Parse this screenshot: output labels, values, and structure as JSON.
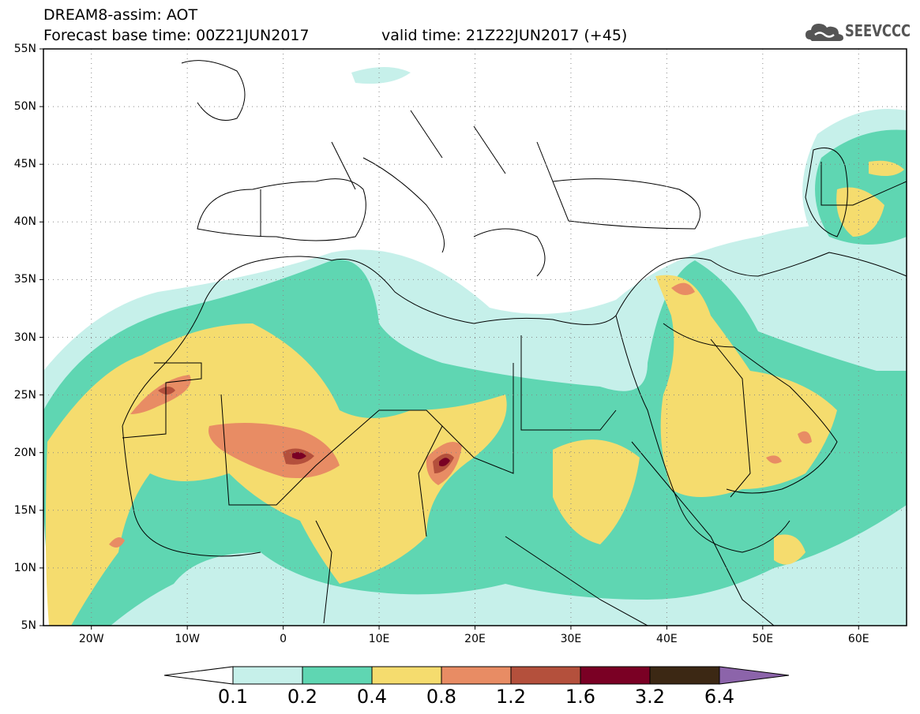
{
  "header": {
    "title_line1": "DREAM8-assim: AOT",
    "title_line2": "Forecast base time: 00Z21JUN2017",
    "valid_time": "valid time: 21Z22JUN2017 (+45)",
    "logo_text": "SEEVCCC",
    "logo_icon": "cloud-icon"
  },
  "map": {
    "lon_range": [
      -25,
      65
    ],
    "lat_range": [
      5,
      55
    ],
    "lat_labels": [
      "55N",
      "50N",
      "45N",
      "40N",
      "35N",
      "30N",
      "25N",
      "20N",
      "15N",
      "10N",
      "5N"
    ],
    "lat_values": [
      55,
      50,
      45,
      40,
      35,
      30,
      25,
      20,
      15,
      10,
      5
    ],
    "lon_labels": [
      "20W",
      "10W",
      "0",
      "10E",
      "20E",
      "30E",
      "40E",
      "50E",
      "60E"
    ],
    "lon_values": [
      -20,
      -10,
      0,
      10,
      20,
      30,
      40,
      50,
      60
    ],
    "grid": "dotted"
  },
  "colorbar": {
    "labels": [
      "0.1",
      "0.2",
      "0.4",
      "0.8",
      "1.2",
      "1.6",
      "3.2",
      "6.4"
    ],
    "colors": [
      "#ffffff",
      "#c6f0ea",
      "#5fd6b2",
      "#f5dc6e",
      "#e88c64",
      "#b4503c",
      "#7a0024",
      "#3c2814",
      "#8c64aa"
    ]
  }
}
